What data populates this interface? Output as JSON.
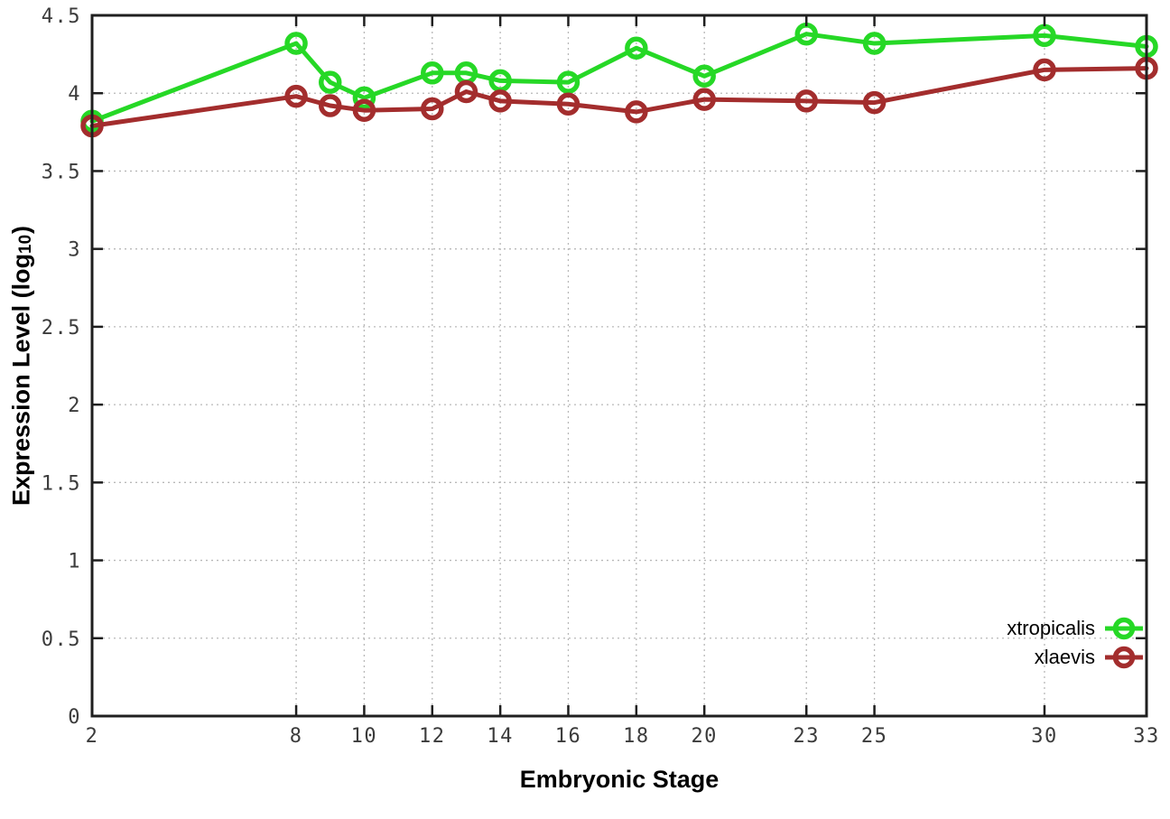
{
  "chart_data": {
    "type": "line",
    "title": "",
    "xlabel": "Embryonic Stage",
    "ylabel": {
      "prefix": "Expression Level (log",
      "sub": "10",
      "suffix": ")"
    },
    "x": [
      2,
      8,
      9,
      10,
      12,
      13,
      14,
      16,
      18,
      20,
      23,
      25,
      30,
      33
    ],
    "x_tick_labels": [
      "2",
      "8",
      "10",
      "12",
      "14",
      "16",
      "18",
      "20",
      "23",
      "25",
      "30",
      "33"
    ],
    "x_ticks": [
      2,
      8,
      10,
      12,
      14,
      16,
      18,
      20,
      23,
      25,
      30,
      33
    ],
    "xlim": [
      2,
      33
    ],
    "y_ticks": [
      0,
      0.5,
      1,
      1.5,
      2,
      2.5,
      3,
      3.5,
      4,
      4.5
    ],
    "ylim": [
      0,
      4.5
    ],
    "grid": true,
    "grid_style": "dotted",
    "legend_position": "bottom-right",
    "marker": "open-circle",
    "colors": {
      "axis": "#1f1f1f",
      "grid": "#b8b8b8",
      "tick_text": "#3b3b3b"
    },
    "series": [
      {
        "name": "xtropicalis",
        "color": "#26d826",
        "values": [
          3.82,
          4.32,
          4.07,
          3.97,
          4.13,
          4.13,
          4.08,
          4.07,
          4.29,
          4.11,
          4.38,
          4.32,
          4.37,
          4.3
        ]
      },
      {
        "name": "xlaevis",
        "color": "#a32d2d",
        "values": [
          3.79,
          3.98,
          3.92,
          3.89,
          3.9,
          4.01,
          3.95,
          3.93,
          3.88,
          3.96,
          3.95,
          3.94,
          4.15,
          4.16
        ]
      }
    ]
  }
}
